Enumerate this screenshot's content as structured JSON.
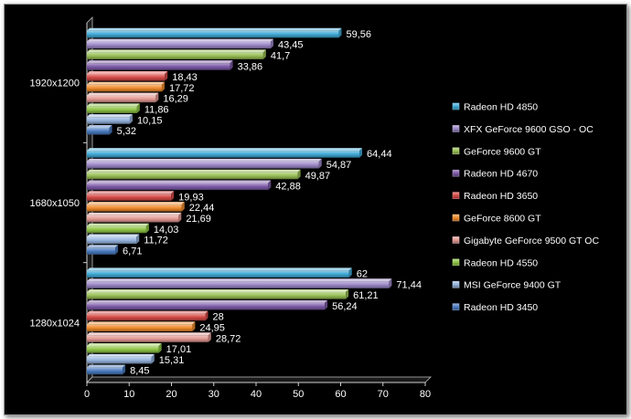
{
  "chart_data": {
    "type": "bar",
    "orientation": "horizontal",
    "bar_style": "3d",
    "title": "",
    "xlabel": "",
    "ylabel": "",
    "categories": [
      "1920x1200",
      "1680x1050",
      "1280x1024"
    ],
    "xlim": [
      0,
      80
    ],
    "x_ticks": [
      "0",
      "10",
      "20",
      "30",
      "40",
      "50",
      "60",
      "70",
      "80"
    ],
    "grid": false,
    "legend_position": "right",
    "series": [
      {
        "name": "Radeon HD 4850",
        "color": "#3fa9d6",
        "values": [
          59.56,
          64.44,
          62
        ],
        "labels": [
          "59,56",
          "64,44",
          "62"
        ]
      },
      {
        "name": "XFX GeForce 9600 GSO - OC",
        "color": "#9b87c7",
        "values": [
          43.45,
          54.87,
          71.44
        ],
        "labels": [
          "43,45",
          "54,87",
          "71,44"
        ]
      },
      {
        "name": "GeForce 9600 GT",
        "color": "#98bf54",
        "values": [
          41.7,
          49.87,
          61.21
        ],
        "labels": [
          "41,7",
          "49,87",
          "61,21"
        ]
      },
      {
        "name": "Radeon HD 4670",
        "color": "#7d5aa8",
        "values": [
          33.86,
          42.88,
          56.24
        ],
        "labels": [
          "33,86",
          "42,88",
          "56,24"
        ]
      },
      {
        "name": "Radeon HD 3650",
        "color": "#d64a46",
        "values": [
          18.43,
          19.93,
          28
        ],
        "labels": [
          "18,43",
          "19,93",
          "28"
        ]
      },
      {
        "name": "GeForce 8600 GT",
        "color": "#f08b2c",
        "values": [
          17.72,
          22.44,
          24.95
        ],
        "labels": [
          "17,72",
          "22,44",
          "24,95"
        ]
      },
      {
        "name": "Gigabyte GeForce 9500 GT OC",
        "color": "#e39a94",
        "values": [
          16.29,
          21.69,
          28.72
        ],
        "labels": [
          "16,29",
          "21,69",
          "28,72"
        ]
      },
      {
        "name": "Radeon HD 4550",
        "color": "#8fc546",
        "values": [
          11.86,
          14.03,
          17.01
        ],
        "labels": [
          "11,86",
          "14,03",
          "17,01"
        ]
      },
      {
        "name": "MSI GeForce 9400 GT",
        "color": "#95b3dd",
        "values": [
          10.15,
          11.72,
          15.31
        ],
        "labels": [
          "10,15",
          "11,72",
          "15,31"
        ]
      },
      {
        "name": "Radeon HD 3450",
        "color": "#4a7bbf",
        "values": [
          5.32,
          6.71,
          8.45
        ],
        "labels": [
          "5,32",
          "6,71",
          "8,45"
        ]
      }
    ]
  }
}
